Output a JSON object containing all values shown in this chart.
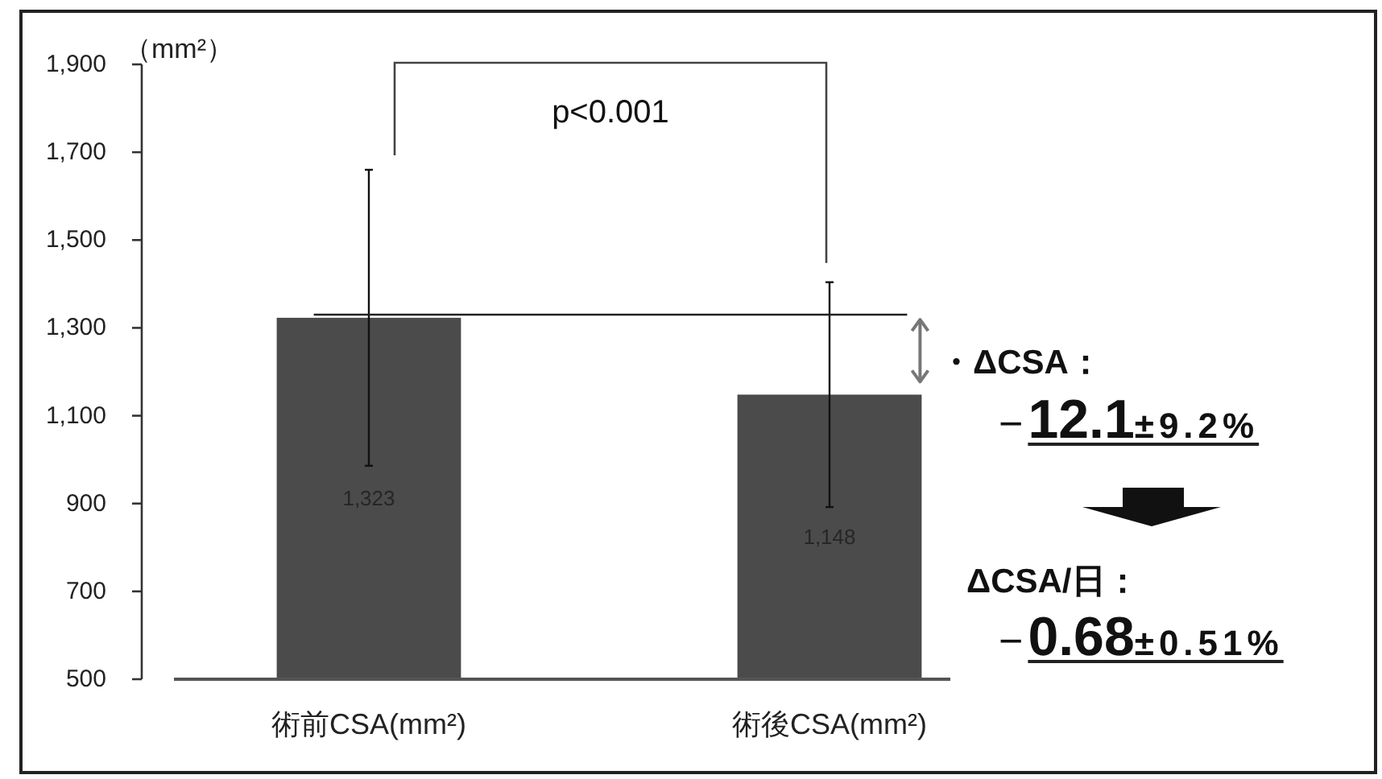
{
  "chart_data": {
    "type": "bar",
    "ylabel": "（mm²）",
    "categories": [
      "術前CSA(mm²)",
      "術後CSA(mm²)"
    ],
    "values": [
      1323,
      1148
    ],
    "color": "#4b4b4b",
    "errors": [
      337,
      256
    ],
    "value_labels": [
      "1,323",
      "1,148"
    ],
    "ylim": [
      500,
      1900
    ],
    "yticks": [
      500,
      700,
      900,
      {
        "value": 1100,
        "label": "1,100"
      },
      {
        "value": 1300,
        "label": "1,300"
      },
      {
        "value": 1500,
        "label": "1,500"
      },
      {
        "value": 1700,
        "label": "1,700"
      },
      {
        "value": 1900,
        "label": "1,900"
      }
    ],
    "ref_lines": [
      {
        "axis": "y",
        "value": 1330
      }
    ],
    "annotations": [
      "p<0.001",
      "・ΔCSA：",
      "−12.1±9.2%",
      "ΔCSA/日：",
      "−0.68±0.51%"
    ]
  }
}
